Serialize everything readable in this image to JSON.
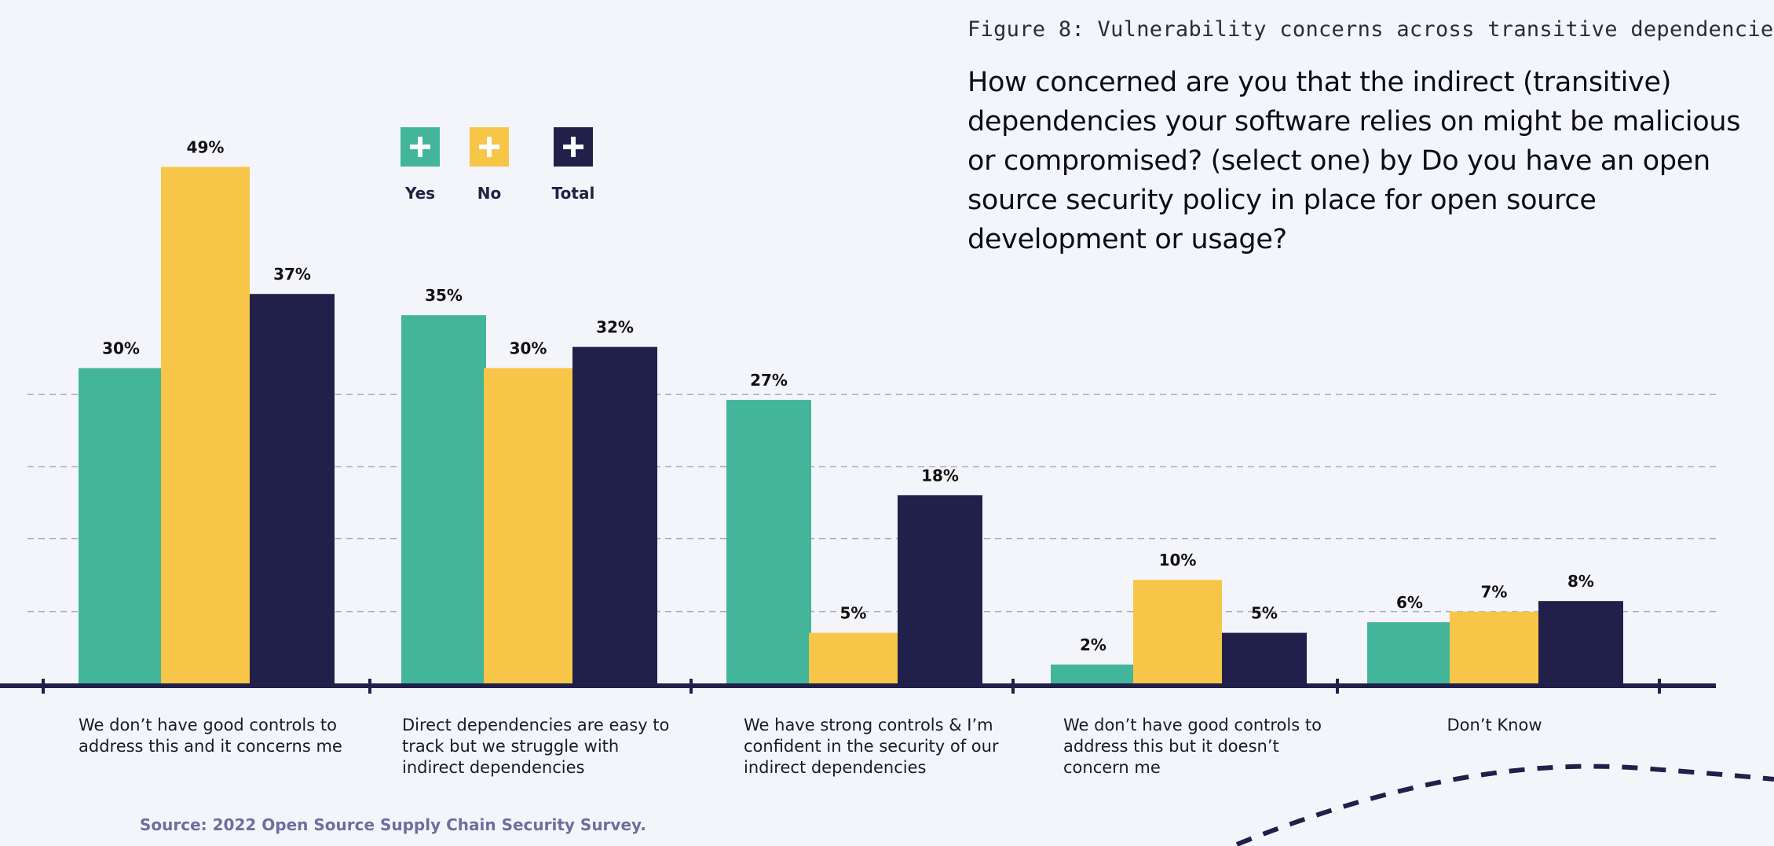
{
  "figure_label": "Figure 8: Vulnerability concerns across transitive dependencie",
  "question": "How concerned are you that the indirect (transitive) dependencies your software relies on might be malicious or compromised? (select one) by Do you have an open source security policy in place for open source development or usage?",
  "source": "Source: 2022 Open Source Supply Chain Security Survey.",
  "legend": [
    {
      "label": "Yes",
      "color": "#43b59a"
    },
    {
      "label": "No",
      "color": "#f7c548"
    },
    {
      "label": "Total",
      "color": "#21204b"
    }
  ],
  "colors": {
    "axis": "#21204b",
    "grid": "#a9aac8",
    "value_label": "#111111"
  },
  "chart_data": {
    "type": "bar",
    "title": "",
    "categories": [
      "We don’t have good controls to address this and it concerns me",
      "Direct dependencies are easy to track but we struggle with indirect dependencies",
      "We have strong controls & I’m confident in the security of our indirect dependencies",
      "We don’t have good controls to address this but it doesn’t concern me",
      "Don’t Know"
    ],
    "series": [
      {
        "name": "Yes",
        "values": [
          30,
          35,
          27,
          2,
          6
        ]
      },
      {
        "name": "No",
        "values": [
          49,
          30,
          5,
          10,
          7
        ]
      },
      {
        "name": "Total",
        "values": [
          37,
          32,
          18,
          5,
          8
        ]
      }
    ],
    "value_labels": [
      [
        "30%",
        "35%",
        "27%",
        "2%",
        "6%"
      ],
      [
        "49%",
        "30%",
        "5%",
        "10%",
        "7%"
      ],
      [
        "37%",
        "32%",
        "18%",
        "5%",
        "8%"
      ]
    ],
    "ylim": [
      0,
      50
    ],
    "grid": true,
    "legend_position": "top-left"
  }
}
